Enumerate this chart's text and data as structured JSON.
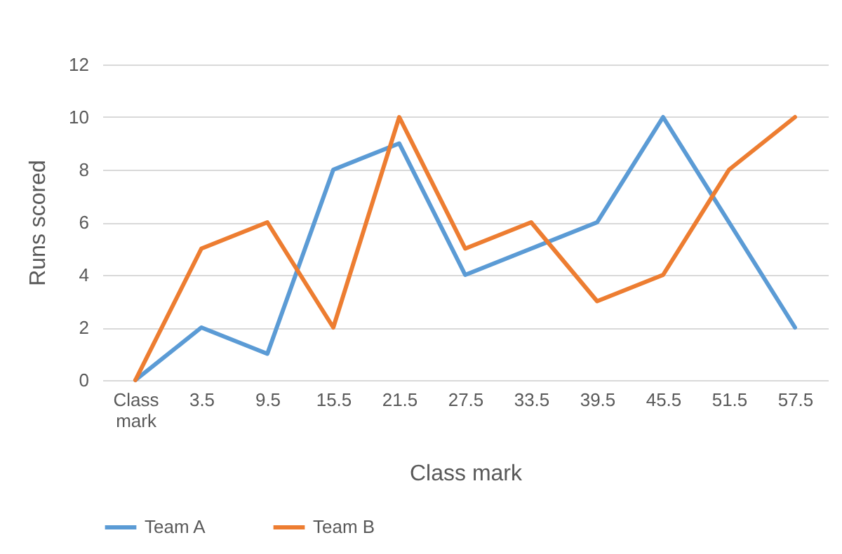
{
  "chart_data": {
    "type": "line",
    "xlabel": "Class mark",
    "ylabel": "Runs scored",
    "categories": [
      "Class mark",
      "3.5",
      "9.5",
      "15.5",
      "21.5",
      "27.5",
      "33.5",
      "39.5",
      "45.5",
      "51.5",
      "57.5"
    ],
    "series": [
      {
        "name": "Team A",
        "color": "#5b9bd5",
        "values": [
          0,
          2,
          1,
          8,
          9,
          4,
          5,
          6,
          10,
          6,
          2
        ]
      },
      {
        "name": "Team B",
        "color": "#ed7d31",
        "values": [
          0,
          5,
          6,
          2,
          10,
          5,
          6,
          3,
          4,
          8,
          10
        ]
      }
    ],
    "ylim": [
      0,
      12
    ],
    "yticks": [
      0,
      2,
      4,
      6,
      8,
      10,
      12
    ],
    "grid": "y",
    "legend": "bottom",
    "marker": "none",
    "line_style": "solid"
  }
}
